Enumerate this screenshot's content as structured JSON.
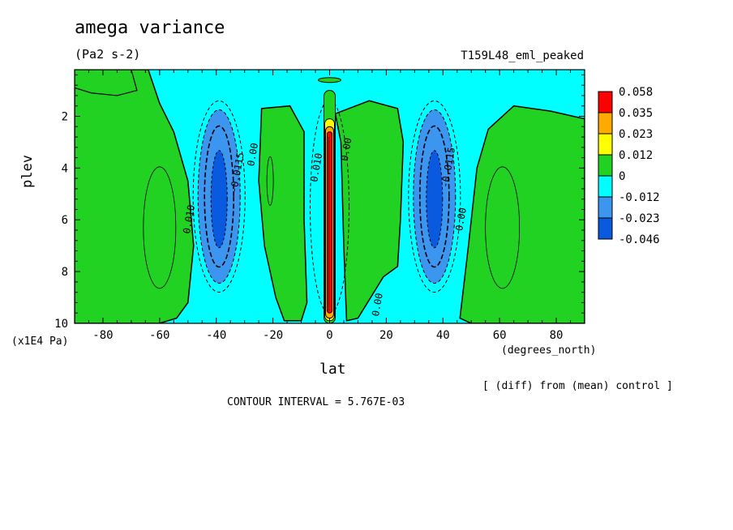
{
  "header": {
    "title": "amega variance",
    "units": "(Pa2 s-2)",
    "run_name": "T159L48_eml_peaked"
  },
  "footer": {
    "note": "[ (diff) from (mean) control ]",
    "contour_interval": "CONTOUR INTERVAL = 5.767E-03"
  },
  "colors": {
    "lvl_neg3": "#0a5ae0",
    "lvl_neg2": "#3c96f0",
    "lvl_neg1": "#00ffff",
    "lvl_zero": "#22d222",
    "lvl_pos1": "#ffff00",
    "lvl_pos2": "#ffaa00",
    "lvl_pos3": "#ff0000"
  },
  "chart_data": {
    "type": "heatmap",
    "subtype": "filled contour",
    "xlabel": "lat",
    "x_unit": "(degrees_north)",
    "ylabel": "plev",
    "y_unit": "(x1E4 Pa)",
    "xlim": [
      -90,
      90
    ],
    "ylim": [
      10,
      0.2
    ],
    "x_ticks": [
      -80,
      -60,
      -40,
      -20,
      0,
      20,
      40,
      60,
      80
    ],
    "y_ticks": [
      2,
      4,
      6,
      8,
      10
    ],
    "colorbar_labels": [
      "0.058",
      "0.035",
      "0.023",
      "0.012",
      "0",
      "-0.012",
      "-0.023",
      "-0.046"
    ],
    "contour_labels": [
      "0.010",
      "-0.0115",
      "0.00",
      "0.010",
      "0.00",
      "0.00",
      "-0.0115",
      "0.00"
    ],
    "features": [
      {
        "region": "-40",
        "plev_center": 5.0,
        "min_level": "-0.046"
      },
      {
        "region": "37",
        "plev_center": 5.0,
        "min_level": "-0.046"
      },
      {
        "region": "0",
        "plev_center": 5.5,
        "max_level": "0.058"
      }
    ]
  }
}
